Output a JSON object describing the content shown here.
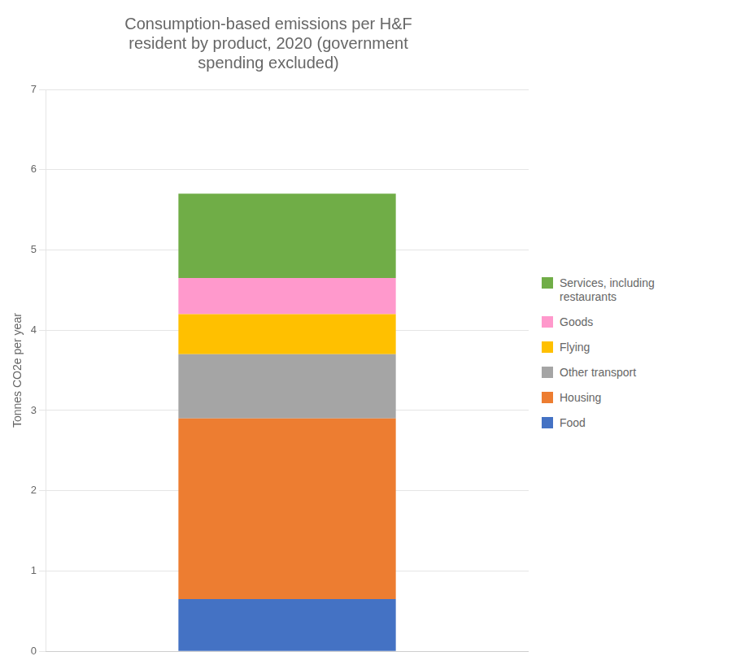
{
  "chart_data": {
    "type": "bar",
    "stacked": true,
    "title": "Consumption-based emissions per H&F\nresident by product, 2020 (government\nspending excluded)",
    "ylabel": "Tonnes CO2e per year",
    "categories": [
      null
    ],
    "series": [
      {
        "name": "Food",
        "color": "#4472C4",
        "values": [
          0.65
        ]
      },
      {
        "name": "Housing",
        "color": "#ED7D31",
        "values": [
          2.25
        ]
      },
      {
        "name": "Other transport",
        "color": "#A5A5A5",
        "values": [
          0.8
        ]
      },
      {
        "name": "Flying",
        "color": "#FFC000",
        "values": [
          0.5
        ]
      },
      {
        "name": "Goods",
        "color": "#FF99CC",
        "values": [
          0.45
        ]
      },
      {
        "name": "Services, including\nrestaurants",
        "color": "#70AD47",
        "values": [
          1.05
        ]
      }
    ],
    "ylim": [
      0,
      7
    ],
    "yticks": [
      0,
      1,
      2,
      3,
      4,
      5,
      6,
      7
    ],
    "grid": true,
    "legend": "right",
    "tick_labels": "y"
  }
}
